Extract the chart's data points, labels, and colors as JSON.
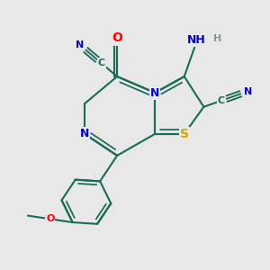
{
  "bg_color": "#e8e8e8",
  "bond_color": "#1a6b5a",
  "atom_colors": {
    "C": "#1a6b5a",
    "N": "#0000cc",
    "S": "#ccaa00",
    "O": "#ff0000",
    "H": "#7a9e9e"
  },
  "bond_width": 1.5,
  "font_size": 9,
  "fig_size": [
    3.0,
    3.0
  ],
  "dpi": 100
}
